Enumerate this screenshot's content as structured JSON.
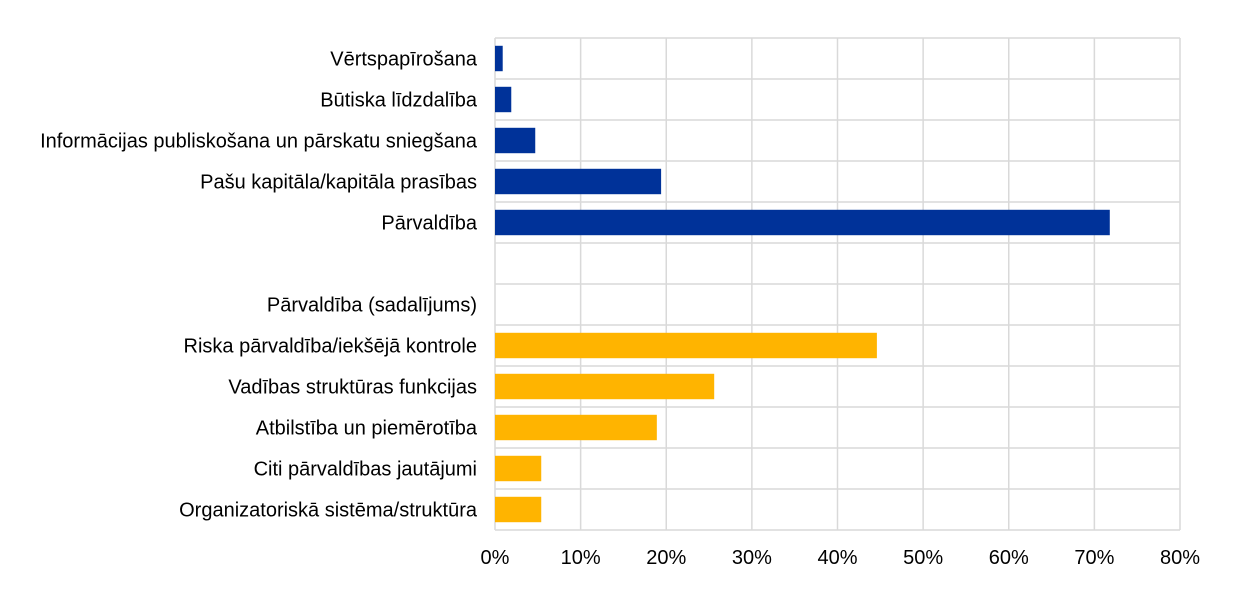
{
  "chart_data": {
    "type": "bar",
    "orientation": "horizontal",
    "categories": [
      "Vērtspapīrošana",
      "Būtiska līdzdalība",
      "Informācijas publiskošana un pārskatu sniegšana",
      "Pašu kapitāla/kapitāla prasības",
      "Pārvaldība",
      "",
      "Pārvaldība (sadalījums)",
      "Riska pārvaldība/iekšējā kontrole",
      "Vadības struktūras funkcijas",
      "Atbilstība un piemērotība",
      "Citi pārvaldības jautājumi",
      "Organizatoriskā sistēma/struktūra"
    ],
    "values": [
      0.9,
      1.9,
      4.7,
      19.4,
      71.8,
      null,
      null,
      44.6,
      25.6,
      18.9,
      5.4,
      5.4
    ],
    "colors": [
      "#003299",
      "#003299",
      "#003299",
      "#003299",
      "#003299",
      null,
      null,
      "#ffb400",
      "#ffb400",
      "#ffb400",
      "#ffb400",
      "#ffb400"
    ],
    "xlim": [
      0,
      80
    ],
    "x_ticks": [
      "0%",
      "10%",
      "20%",
      "30%",
      "40%",
      "50%",
      "60%",
      "70%",
      "80%"
    ],
    "grid": true,
    "legend": false
  }
}
